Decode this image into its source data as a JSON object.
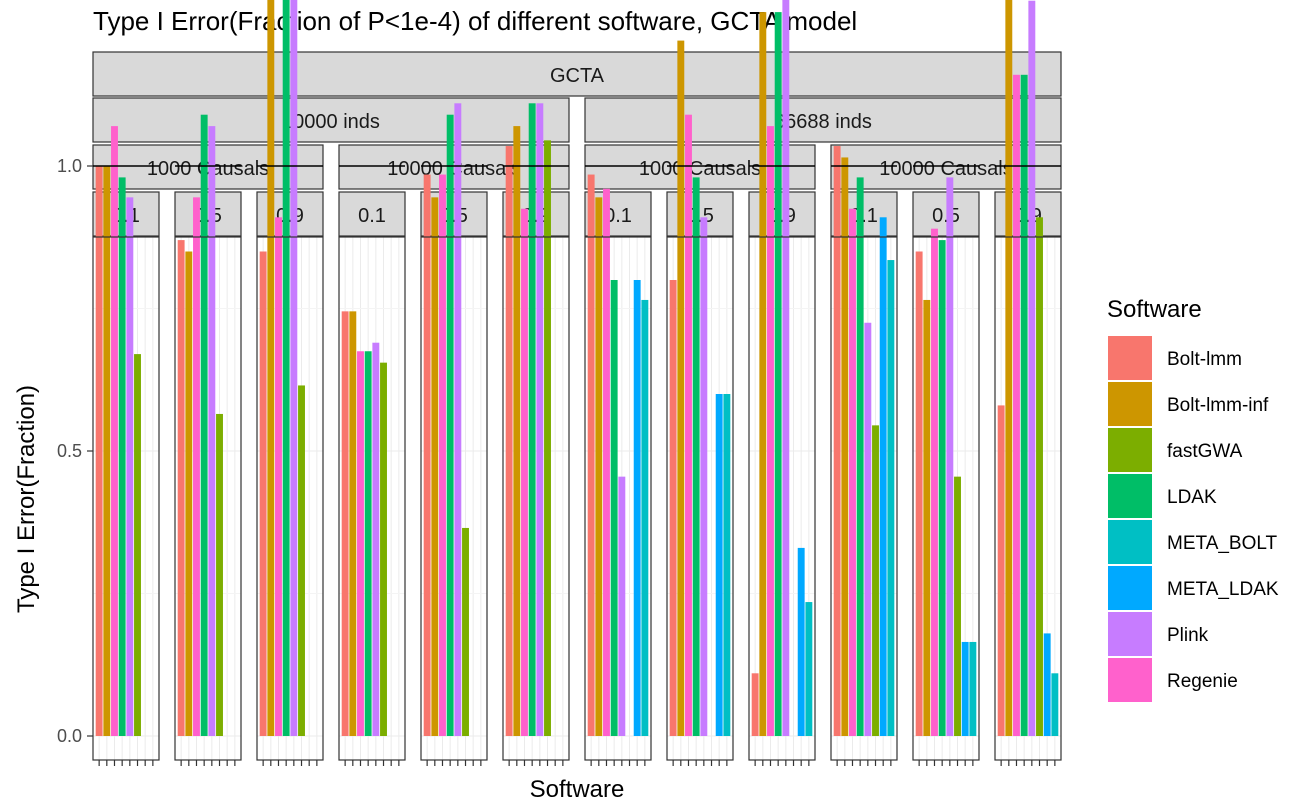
{
  "chart_data": {
    "type": "bar",
    "title": "Type I Error(Fraction of P<1e-4) of different software, GCTA model",
    "xlabel": "Software",
    "ylabel": "Type I Error(Fraction)",
    "ylim": [
      0,
      1.76
    ],
    "yticks": [
      "0.0",
      "0.5",
      "1.0",
      "1.5"
    ],
    "reference_line": 1.0,
    "model_strip": "GCTA",
    "legend": {
      "title": "Software",
      "placement": "right",
      "entries": [
        {
          "name": "Bolt-lmm",
          "color": "#F8766D"
        },
        {
          "name": "Bolt-lmm-inf",
          "color": "#CD9600"
        },
        {
          "name": "fastGWA",
          "color": "#7CAE00"
        },
        {
          "name": "LDAK",
          "color": "#00BE67"
        },
        {
          "name": "META_BOLT",
          "color": "#00BFC4"
        },
        {
          "name": "META_LDAK",
          "color": "#00A9FF"
        },
        {
          "name": "Plink",
          "color": "#C77CFF"
        },
        {
          "name": "Regenie",
          "color": "#FF61CC"
        }
      ]
    },
    "x_order": [
      "Bolt-lmm",
      "Bolt-lmm-inf",
      "Regenie",
      "LDAK",
      "Plink",
      "fastGWA",
      "META_LDAK",
      "META_BOLT"
    ],
    "groups": [
      {
        "label": "10000 inds",
        "subgroups": [
          {
            "label": "1000 Causals",
            "panels": [
              {
                "label": "0.1",
                "values": [
                  1.0,
                  1.0,
                  1.07,
                  0.98,
                  0.945,
                  0.67,
                  null,
                  null
                ]
              },
              {
                "label": "0.5",
                "values": [
                  0.87,
                  0.85,
                  0.945,
                  1.09,
                  1.07,
                  0.565,
                  null,
                  null
                ]
              },
              {
                "label": "0.9",
                "values": [
                  0.85,
                  1.33,
                  0.91,
                  1.33,
                  1.31,
                  0.615,
                  null,
                  null
                ]
              }
            ]
          },
          {
            "label": "10000 Causals",
            "panels": [
              {
                "label": "0.1",
                "values": [
                  0.745,
                  0.745,
                  0.675,
                  0.675,
                  0.69,
                  0.655,
                  null,
                  null
                ]
              },
              {
                "label": "0.5",
                "values": [
                  0.985,
                  0.945,
                  0.985,
                  1.09,
                  1.11,
                  0.365,
                  null,
                  null
                ]
              },
              {
                "label": "0.9",
                "values": [
                  1.035,
                  1.07,
                  0.925,
                  1.11,
                  1.11,
                  1.045,
                  null,
                  null
                ]
              }
            ]
          }
        ]
      },
      {
        "label": "66688 inds",
        "subgroups": [
          {
            "label": "1000 Causals",
            "panels": [
              {
                "label": "0.1",
                "values": [
                  0.985,
                  0.945,
                  0.96,
                  0.8,
                  0.455,
                  null,
                  0.8,
                  0.765
                ]
              },
              {
                "label": "0.5",
                "values": [
                  0.8,
                  1.22,
                  1.09,
                  0.98,
                  0.91,
                  null,
                  0.6,
                  0.6
                ]
              },
              {
                "label": "0.9",
                "values": [
                  0.11,
                  1.27,
                  1.07,
                  1.27,
                  1.32,
                  null,
                  0.33,
                  0.235
                ]
              }
            ]
          },
          {
            "label": "10000 Causals",
            "panels": [
              {
                "label": "0.1",
                "values": [
                  1.035,
                  1.015,
                  0.925,
                  0.98,
                  0.725,
                  0.545,
                  0.91,
                  0.835
                ]
              },
              {
                "label": "0.5",
                "values": [
                  0.85,
                  0.765,
                  0.89,
                  0.87,
                  0.98,
                  0.455,
                  0.165,
                  0.165
                ]
              },
              {
                "label": "0.9",
                "values": [
                  0.58,
                  1.67,
                  1.16,
                  1.16,
                  1.29,
                  0.91,
                  0.18,
                  0.11
                ]
              }
            ]
          }
        ]
      }
    ]
  }
}
